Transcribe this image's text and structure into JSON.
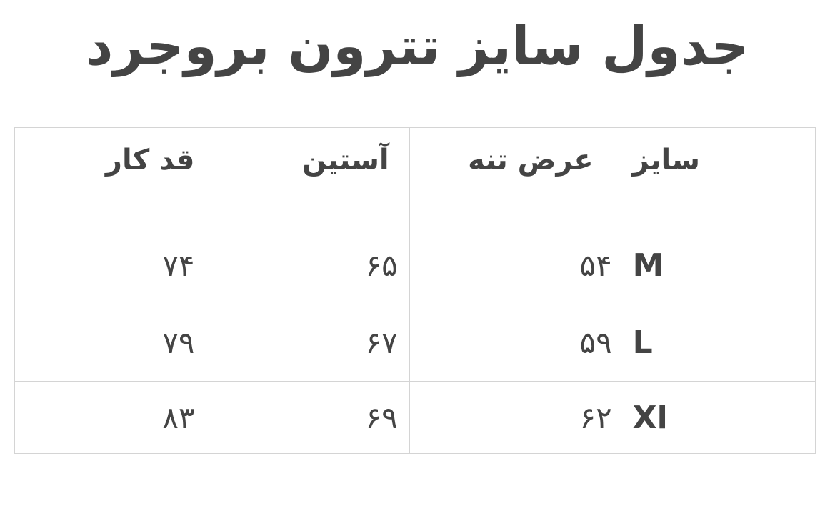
{
  "title": "جدول سایز تترون بروجرد",
  "table": {
    "headers": [
      "سایز",
      "عرض تنه",
      "آستین",
      "قد کار"
    ],
    "rows": [
      [
        "M",
        "۵۴",
        "۶۵",
        "۷۴"
      ],
      [
        "L",
        "۵۹",
        "۶۷",
        "۷۹"
      ],
      [
        "Xl",
        "۶۲",
        "۶۹",
        "۸۳"
      ]
    ]
  }
}
